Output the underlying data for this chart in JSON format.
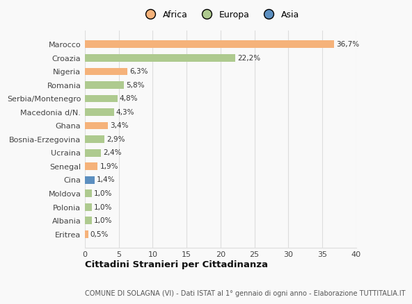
{
  "categories": [
    "Marocco",
    "Croazia",
    "Nigeria",
    "Romania",
    "Serbia/Montenegro",
    "Macedonia d/N.",
    "Ghana",
    "Bosnia-Erzegovina",
    "Ucraina",
    "Senegal",
    "Cina",
    "Moldova",
    "Polonia",
    "Albania",
    "Eritrea"
  ],
  "values": [
    36.7,
    22.2,
    6.3,
    5.8,
    4.8,
    4.3,
    3.4,
    2.9,
    2.4,
    1.9,
    1.4,
    1.0,
    1.0,
    1.0,
    0.5
  ],
  "labels": [
    "36,7%",
    "22,2%",
    "6,3%",
    "5,8%",
    "4,8%",
    "4,3%",
    "3,4%",
    "2,9%",
    "2,4%",
    "1,9%",
    "1,4%",
    "1,0%",
    "1,0%",
    "1,0%",
    "0,5%"
  ],
  "colors": [
    "#F5B27A",
    "#AECA8F",
    "#F5B27A",
    "#AECA8F",
    "#AECA8F",
    "#AECA8F",
    "#F5B27A",
    "#AECA8F",
    "#AECA8F",
    "#F5B27A",
    "#5C8FC0",
    "#AECA8F",
    "#AECA8F",
    "#AECA8F",
    "#F5B27A"
  ],
  "legend_labels": [
    "Africa",
    "Europa",
    "Asia"
  ],
  "legend_colors": [
    "#F5B27A",
    "#AECA8F",
    "#5C8FC0"
  ],
  "title": "Cittadini Stranieri per Cittadinanza",
  "subtitle": "COMUNE DI SOLAGNA (VI) - Dati ISTAT al 1° gennaio di ogni anno - Elaborazione TUTTITALIA.IT",
  "xlim": [
    0,
    40
  ],
  "xticks": [
    0,
    5,
    10,
    15,
    20,
    25,
    30,
    35,
    40
  ],
  "background_color": "#f9f9f9",
  "grid_color": "#dddddd",
  "bar_height": 0.55
}
